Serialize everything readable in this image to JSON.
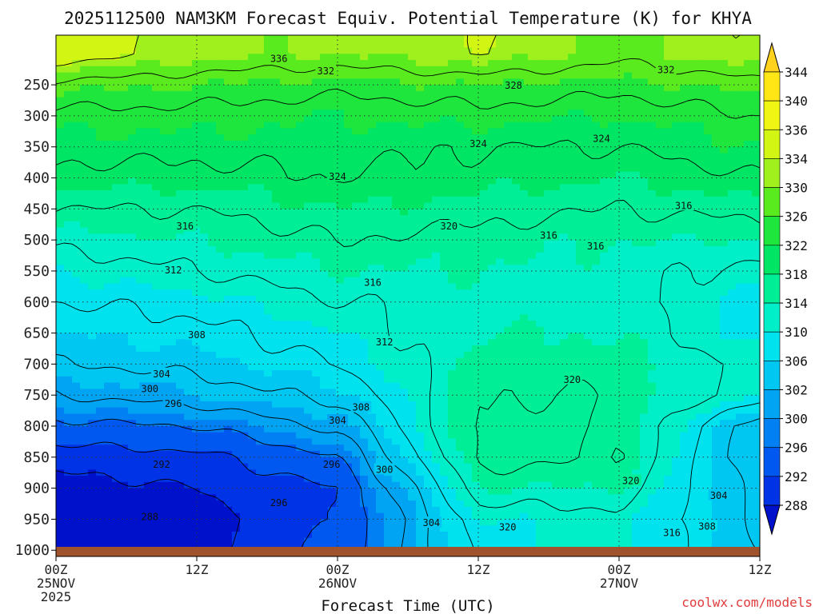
{
  "chart_data": {
    "type": "heatmap",
    "title": "2025112500 NAM3KM Forecast Equiv. Potential Temperature (K) for KHYA",
    "xlabel": "Forecast Time (UTC)",
    "ylabel": "",
    "units": "K",
    "x_hours": [
      0,
      12,
      24,
      36,
      48,
      60
    ],
    "xlim": [
      0,
      60
    ],
    "x_ticks": [
      {
        "hour": 0,
        "line1": "00Z",
        "line2": "25NOV",
        "line3": "2025"
      },
      {
        "hour": 12,
        "line1": "12Z",
        "line2": "",
        "line3": ""
      },
      {
        "hour": 24,
        "line1": "00Z",
        "line2": "26NOV",
        "line3": ""
      },
      {
        "hour": 36,
        "line1": "12Z",
        "line2": "",
        "line3": ""
      },
      {
        "hour": 48,
        "line1": "00Z",
        "line2": "27NOV",
        "line3": ""
      },
      {
        "hour": 60,
        "line1": "12Z",
        "line2": "",
        "line3": ""
      }
    ],
    "pressure_levels": [
      250,
      300,
      350,
      400,
      450,
      500,
      550,
      600,
      650,
      700,
      750,
      800,
      850,
      900,
      950,
      1000
    ],
    "ylim": [
      1010,
      170
    ],
    "grid_levels": [
      200,
      250,
      300,
      350,
      400,
      450,
      500,
      550,
      600,
      650,
      700,
      750,
      800,
      850,
      900,
      950,
      1000
    ],
    "theta_e": [
      [
        338,
        335,
        334,
        336,
        333,
        336
      ],
      [
        331,
        330,
        329,
        330,
        329,
        331
      ],
      [
        327,
        327,
        326,
        327,
        326,
        328
      ],
      [
        325,
        325,
        325,
        324,
        324,
        326
      ],
      [
        323,
        323,
        324,
        323,
        322,
        324
      ],
      [
        320,
        320,
        322,
        321,
        320,
        321
      ],
      [
        317,
        318,
        320,
        319,
        318,
        318
      ],
      [
        314,
        316,
        318,
        318,
        317,
        315
      ],
      [
        312,
        313,
        316,
        317,
        317,
        313
      ],
      [
        310,
        311,
        314,
        318,
        318,
        313
      ],
      [
        308,
        309,
        312,
        319,
        319,
        315
      ],
      [
        304,
        306,
        309,
        320,
        320,
        314
      ],
      [
        299,
        300,
        305,
        321,
        320,
        306
      ],
      [
        294,
        295,
        300,
        321,
        320,
        305
      ],
      [
        290,
        292,
        296,
        318,
        318,
        306
      ],
      [
        288,
        290,
        296,
        314,
        315,
        307
      ],
      [
        288,
        291,
        297,
        313,
        315,
        308
      ]
    ],
    "contour_interval": 4,
    "contour_labels": [
      {
        "text": "336",
        "hour": 19.0,
        "p": 208
      },
      {
        "text": "332",
        "hour": 23.0,
        "p": 228
      },
      {
        "text": "332",
        "hour": 52.0,
        "p": 226
      },
      {
        "text": "328",
        "hour": 39.0,
        "p": 251
      },
      {
        "text": "324",
        "hour": 36.0,
        "p": 345
      },
      {
        "text": "324",
        "hour": 46.5,
        "p": 337
      },
      {
        "text": "324",
        "hour": 24.0,
        "p": 398
      },
      {
        "text": "320",
        "hour": 33.5,
        "p": 478
      },
      {
        "text": "316",
        "hour": 11.0,
        "p": 478
      },
      {
        "text": "316",
        "hour": 42.0,
        "p": 493
      },
      {
        "text": "316",
        "hour": 46.0,
        "p": 510
      },
      {
        "text": "316",
        "hour": 53.5,
        "p": 445
      },
      {
        "text": "312",
        "hour": 10.0,
        "p": 549
      },
      {
        "text": "316",
        "hour": 27.0,
        "p": 569
      },
      {
        "text": "308",
        "hour": 12.0,
        "p": 653
      },
      {
        "text": "312",
        "hour": 28.0,
        "p": 665
      },
      {
        "text": "304",
        "hour": 9.0,
        "p": 716
      },
      {
        "text": "300",
        "hour": 8.0,
        "p": 740
      },
      {
        "text": "296",
        "hour": 10.0,
        "p": 764
      },
      {
        "text": "320",
        "hour": 44.0,
        "p": 725
      },
      {
        "text": "308",
        "hour": 26.0,
        "p": 770
      },
      {
        "text": "304",
        "hour": 24.0,
        "p": 791
      },
      {
        "text": "292",
        "hour": 9.0,
        "p": 862
      },
      {
        "text": "296",
        "hour": 23.5,
        "p": 862
      },
      {
        "text": "300",
        "hour": 28.0,
        "p": 870
      },
      {
        "text": "320",
        "hour": 49.0,
        "p": 888
      },
      {
        "text": "304",
        "hour": 56.5,
        "p": 912
      },
      {
        "text": "296",
        "hour": 19.0,
        "p": 924
      },
      {
        "text": "288",
        "hour": 8.0,
        "p": 946
      },
      {
        "text": "304",
        "hour": 32.0,
        "p": 956
      },
      {
        "text": "320",
        "hour": 38.5,
        "p": 963
      },
      {
        "text": "308",
        "hour": 55.5,
        "p": 962
      },
      {
        "text": "316",
        "hour": 52.5,
        "p": 972
      }
    ],
    "colorbar": {
      "levels": [
        288,
        292,
        296,
        300,
        302,
        306,
        310,
        314,
        318,
        322,
        326,
        330,
        334,
        336,
        340,
        344
      ],
      "colors": [
        "#0011cc",
        "#0033e6",
        "#0058f0",
        "#0080f2",
        "#00a4f2",
        "#00c6f2",
        "#00e2ee",
        "#00eec8",
        "#00ee96",
        "#00e664",
        "#1ee63c",
        "#5aeb1e",
        "#a0f01e",
        "#d2f514",
        "#f0f514",
        "#ffe614"
      ],
      "under_color": "#0011cc",
      "over_color": "#ffd21e"
    },
    "terrain_color": "#a0522d"
  },
  "credit": "coolwx.com/models"
}
